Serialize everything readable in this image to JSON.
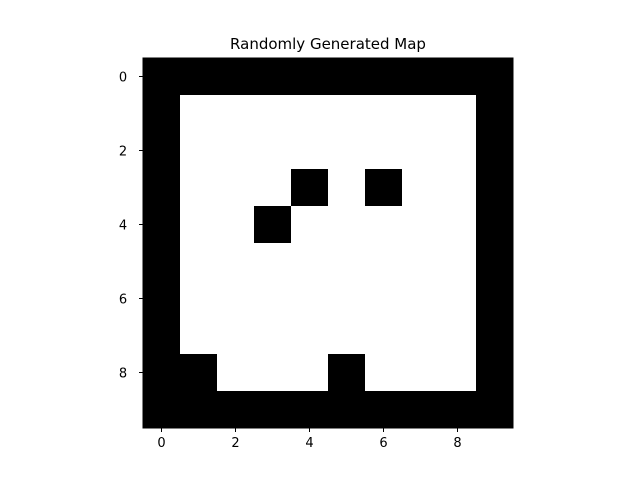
{
  "chart_data": {
    "type": "heatmap",
    "title": "Randomly Generated Map",
    "xlabel": "",
    "ylabel": "",
    "rows": 10,
    "cols": 10,
    "x_ticks": [
      0,
      2,
      4,
      6,
      8
    ],
    "y_ticks": [
      0,
      2,
      4,
      6,
      8
    ],
    "xlim": [
      -0.5,
      9.5
    ],
    "ylim": [
      9.5,
      -0.5
    ],
    "grid": false,
    "colormap": {
      "1": "#000000",
      "0": "#ffffff"
    },
    "values": [
      [
        1,
        1,
        1,
        1,
        1,
        1,
        1,
        1,
        1,
        1
      ],
      [
        1,
        0,
        0,
        0,
        0,
        0,
        0,
        0,
        0,
        1
      ],
      [
        1,
        0,
        0,
        0,
        0,
        0,
        0,
        0,
        0,
        1
      ],
      [
        1,
        0,
        0,
        0,
        1,
        0,
        1,
        0,
        0,
        1
      ],
      [
        1,
        0,
        0,
        1,
        0,
        0,
        0,
        0,
        0,
        1
      ],
      [
        1,
        0,
        0,
        0,
        0,
        0,
        0,
        0,
        0,
        1
      ],
      [
        1,
        0,
        0,
        0,
        0,
        0,
        0,
        0,
        0,
        1
      ],
      [
        1,
        0,
        0,
        0,
        0,
        0,
        0,
        0,
        0,
        1
      ],
      [
        1,
        1,
        0,
        0,
        0,
        1,
        0,
        0,
        0,
        1
      ],
      [
        1,
        1,
        1,
        1,
        1,
        1,
        1,
        1,
        1,
        1
      ]
    ]
  }
}
